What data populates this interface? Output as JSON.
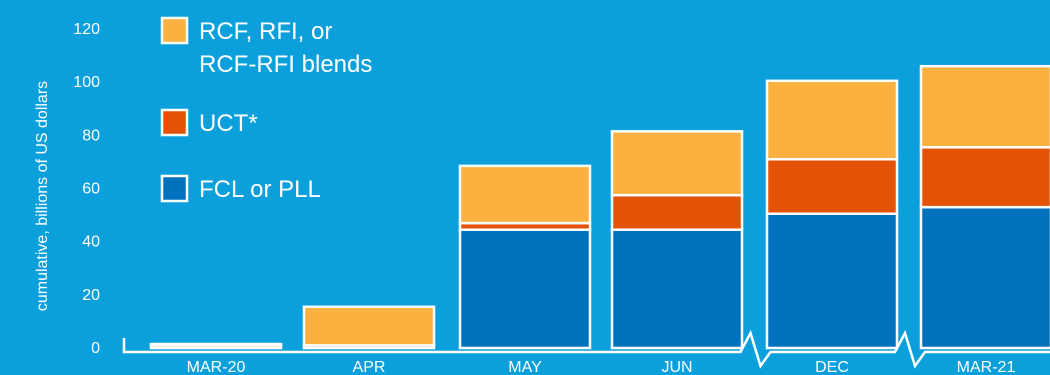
{
  "colors": {
    "background": "#0ba0dc",
    "rcf_rfi": "#fbb040",
    "uct": "#e35205",
    "fcl_pll": "#0071bc",
    "stroke": "#ffffff"
  },
  "chart_data": {
    "type": "bar",
    "stacked": true,
    "title": "",
    "xlabel": "",
    "ylabel": "cumulative, billions of US dollars",
    "ylim": [
      0,
      120
    ],
    "yticks": [
      "0",
      "20",
      "40",
      "60",
      "80",
      "100",
      "120"
    ],
    "categories": [
      "MAR-20",
      "APR",
      "MAY",
      "JUN",
      "DEC",
      "MAR-21"
    ],
    "axis_breaks_after": [
      "JUN",
      "DEC"
    ],
    "grid": false,
    "legend_position": "top-left",
    "series": [
      {
        "name": "FCL or PLL",
        "color_key": "fcl_pll",
        "values": [
          0,
          0,
          44.5,
          44.5,
          50.5,
          53
        ]
      },
      {
        "name": "UCT*",
        "color_key": "uct",
        "values": [
          1,
          1,
          2.5,
          13,
          20.5,
          22.5
        ]
      },
      {
        "name": "RCF, RFI, or RCF-RFI blends",
        "color_key": "rcf_rfi",
        "values": [
          0.5,
          14.5,
          21.5,
          24,
          29.5,
          30.5
        ]
      }
    ],
    "legend": [
      {
        "key": "rcf_rfi",
        "lines": [
          "RCF, RFI, or",
          "RCF-RFI blends"
        ]
      },
      {
        "key": "uct",
        "lines": [
          "UCT*"
        ]
      },
      {
        "key": "fcl_pll",
        "lines": [
          "FCL or PLL"
        ]
      }
    ]
  }
}
